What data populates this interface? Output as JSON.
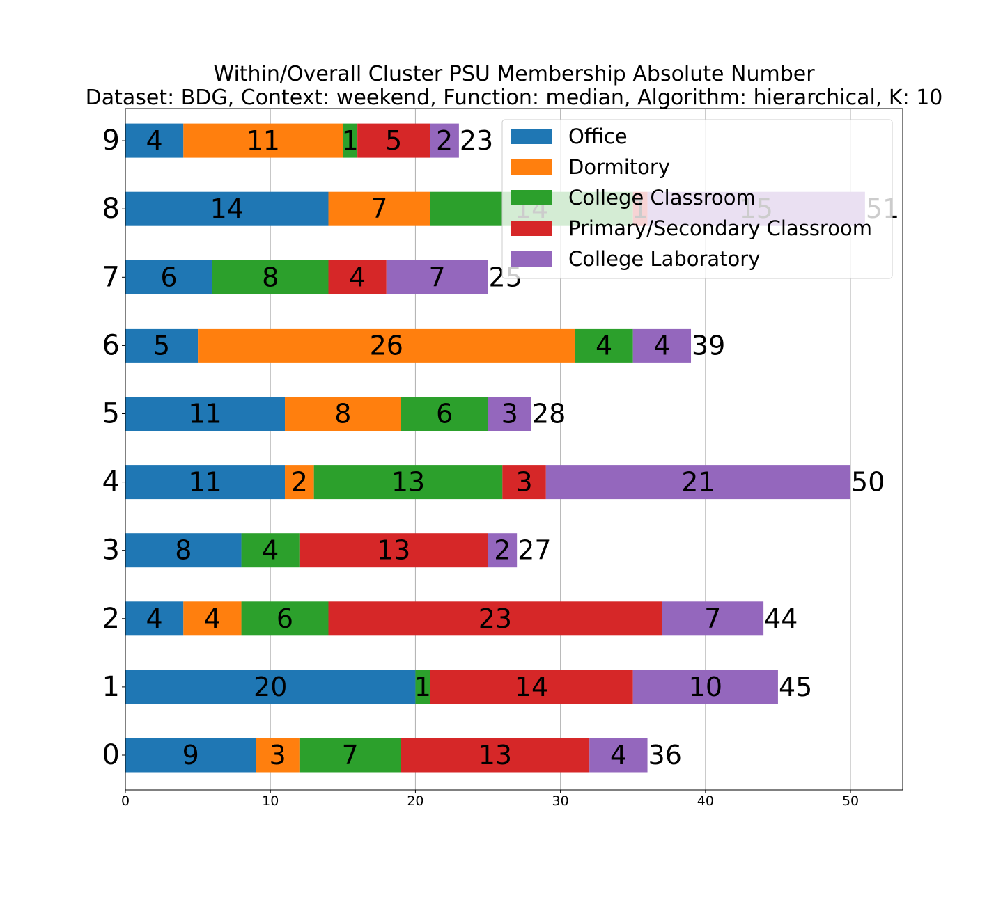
{
  "chart_data": {
    "type": "bar",
    "orientation": "horizontal",
    "stacked": true,
    "title": "Within/Overall Cluster PSU Membership Absolute Number",
    "subtitle": "Dataset: BDG, Context: weekend, Function: median, Algorithm: hierarchical, K: 10",
    "xlabel": "",
    "ylabel": "",
    "xlim": [
      0,
      53.6
    ],
    "xticks": [
      0,
      10,
      20,
      30,
      40,
      50
    ],
    "categories": [
      "0",
      "1",
      "2",
      "3",
      "4",
      "5",
      "6",
      "7",
      "8",
      "9"
    ],
    "series": [
      {
        "name": "Office",
        "color": "#1f77b4",
        "values": [
          9,
          20,
          4,
          8,
          11,
          11,
          5,
          6,
          14,
          4
        ]
      },
      {
        "name": "Dormitory",
        "color": "#ff7f0e",
        "values": [
          3,
          0,
          4,
          0,
          2,
          8,
          26,
          0,
          7,
          11
        ]
      },
      {
        "name": "College Classroom",
        "color": "#2ca02c",
        "values": [
          7,
          1,
          6,
          4,
          13,
          6,
          4,
          8,
          14,
          1
        ]
      },
      {
        "name": "Primary/Secondary Classroom",
        "color": "#d62728",
        "values": [
          13,
          14,
          23,
          13,
          3,
          0,
          0,
          4,
          1,
          5
        ]
      },
      {
        "name": "College Laboratory",
        "color": "#9467bd",
        "values": [
          4,
          10,
          7,
          2,
          21,
          3,
          4,
          7,
          15,
          2
        ]
      }
    ],
    "totals": [
      36,
      45,
      44,
      27,
      50,
      28,
      39,
      25,
      51,
      23
    ],
    "grid": "x",
    "legend": {
      "position": "top-right"
    }
  }
}
